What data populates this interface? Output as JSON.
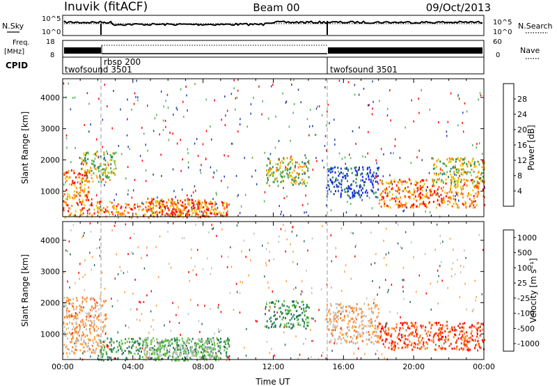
{
  "header": {
    "station": "Inuvik (fitACF)",
    "beam": "Beam 00",
    "date": "09/Oct/2013"
  },
  "status_panels": {
    "nsky_label": "N.Sky",
    "nsearch_label": "N.Search",
    "noise_ticks": [
      "10^5",
      "10^0"
    ],
    "freq_label": "Freq.",
    "freq_unit": "[MHz]",
    "freq_ticks": [
      "18",
      "8"
    ],
    "nave_label": "Nave",
    "nave_ticks": [
      "60",
      "0"
    ],
    "cpid_label": "CPID",
    "cpid_segments": [
      {
        "name": "twofsound 3501",
        "start": "00:00",
        "end": "02:00"
      },
      {
        "name": "rbsp 200",
        "start": "02:00",
        "end": "15:00"
      },
      {
        "name": "twofsound 3501",
        "start": "15:00",
        "end": "24:00"
      }
    ]
  },
  "chart_data": [
    {
      "type": "heatmap",
      "parameter": "Power",
      "ylabel": "Slant Range [km]",
      "yticks": [
        1000,
        2000,
        3000,
        4000
      ],
      "ylim": [
        180,
        4600
      ],
      "xlim_hours": [
        0,
        24
      ],
      "colorbar_label": "Power [dB]",
      "colorbar_ticks": [
        "4",
        "8",
        "12",
        "16",
        "20",
        "24",
        "28"
      ],
      "colorbar_colors": [
        "#1020ff",
        "#2040b0",
        "#2e8b57",
        "#50b050",
        "#e6c80a",
        "#ff8c00",
        "#ff5000",
        "#ff0000"
      ],
      "regions": [
        {
          "t": [
            0.0,
            1.5
          ],
          "r": [
            700,
            1700
          ],
          "level": "high"
        },
        {
          "t": [
            1.0,
            3.0
          ],
          "r": [
            1300,
            2300
          ],
          "level": "mid"
        },
        {
          "t": [
            0.0,
            9.5
          ],
          "r": [
            180,
            700
          ],
          "level": "high"
        },
        {
          "t": [
            4.5,
            8.0
          ],
          "r": [
            180,
            800
          ],
          "level": "high"
        },
        {
          "t": [
            11.5,
            14.0
          ],
          "r": [
            1200,
            2100
          ],
          "level": "mid"
        },
        {
          "t": [
            15.0,
            18.0
          ],
          "r": [
            800,
            1800
          ],
          "level": "low"
        },
        {
          "t": [
            18.0,
            24.0
          ],
          "r": [
            500,
            1400
          ],
          "level": "high"
        },
        {
          "t": [
            21.0,
            24.0
          ],
          "r": [
            1300,
            2100
          ],
          "level": "mid"
        }
      ]
    },
    {
      "type": "heatmap",
      "parameter": "Velocity",
      "ylabel": "Slant Range [km]",
      "yticks": [
        1000,
        2000,
        3000,
        4000
      ],
      "ylim": [
        180,
        4600
      ],
      "xlim_hours": [
        0,
        24
      ],
      "xticks": [
        "00:00",
        "04:00",
        "08:00",
        "12:00",
        "16:00",
        "20:00",
        "00:00"
      ],
      "xlabel": "Time UT",
      "colorbar_label": "Velocity [m s⁻¹]",
      "colorbar_ticks": [
        "1000",
        "500",
        "100",
        "25",
        "-25",
        "-100",
        "-500",
        "-1000"
      ],
      "colorbar_colors": [
        "#1c3bc8",
        "#2a6e5a",
        "#2e8b57",
        "#5fc73a",
        "#c0c0c0",
        "#ffa040",
        "#ff7a20",
        "#ff4000",
        "#ff0000"
      ],
      "regions": [
        {
          "t": [
            0.0,
            2.5
          ],
          "r": [
            400,
            2200
          ],
          "level": "neg"
        },
        {
          "t": [
            2.0,
            9.5
          ],
          "r": [
            180,
            900
          ],
          "level": "pos"
        },
        {
          "t": [
            4.5,
            9.0
          ],
          "r": [
            180,
            900
          ],
          "level": "zero"
        },
        {
          "t": [
            11.5,
            14.0
          ],
          "r": [
            1200,
            2100
          ],
          "level": "pos"
        },
        {
          "t": [
            15.0,
            18.0
          ],
          "r": [
            700,
            2000
          ],
          "level": "neg"
        },
        {
          "t": [
            18.0,
            24.0
          ],
          "r": [
            500,
            1400
          ],
          "level": "negstrong"
        }
      ]
    }
  ]
}
